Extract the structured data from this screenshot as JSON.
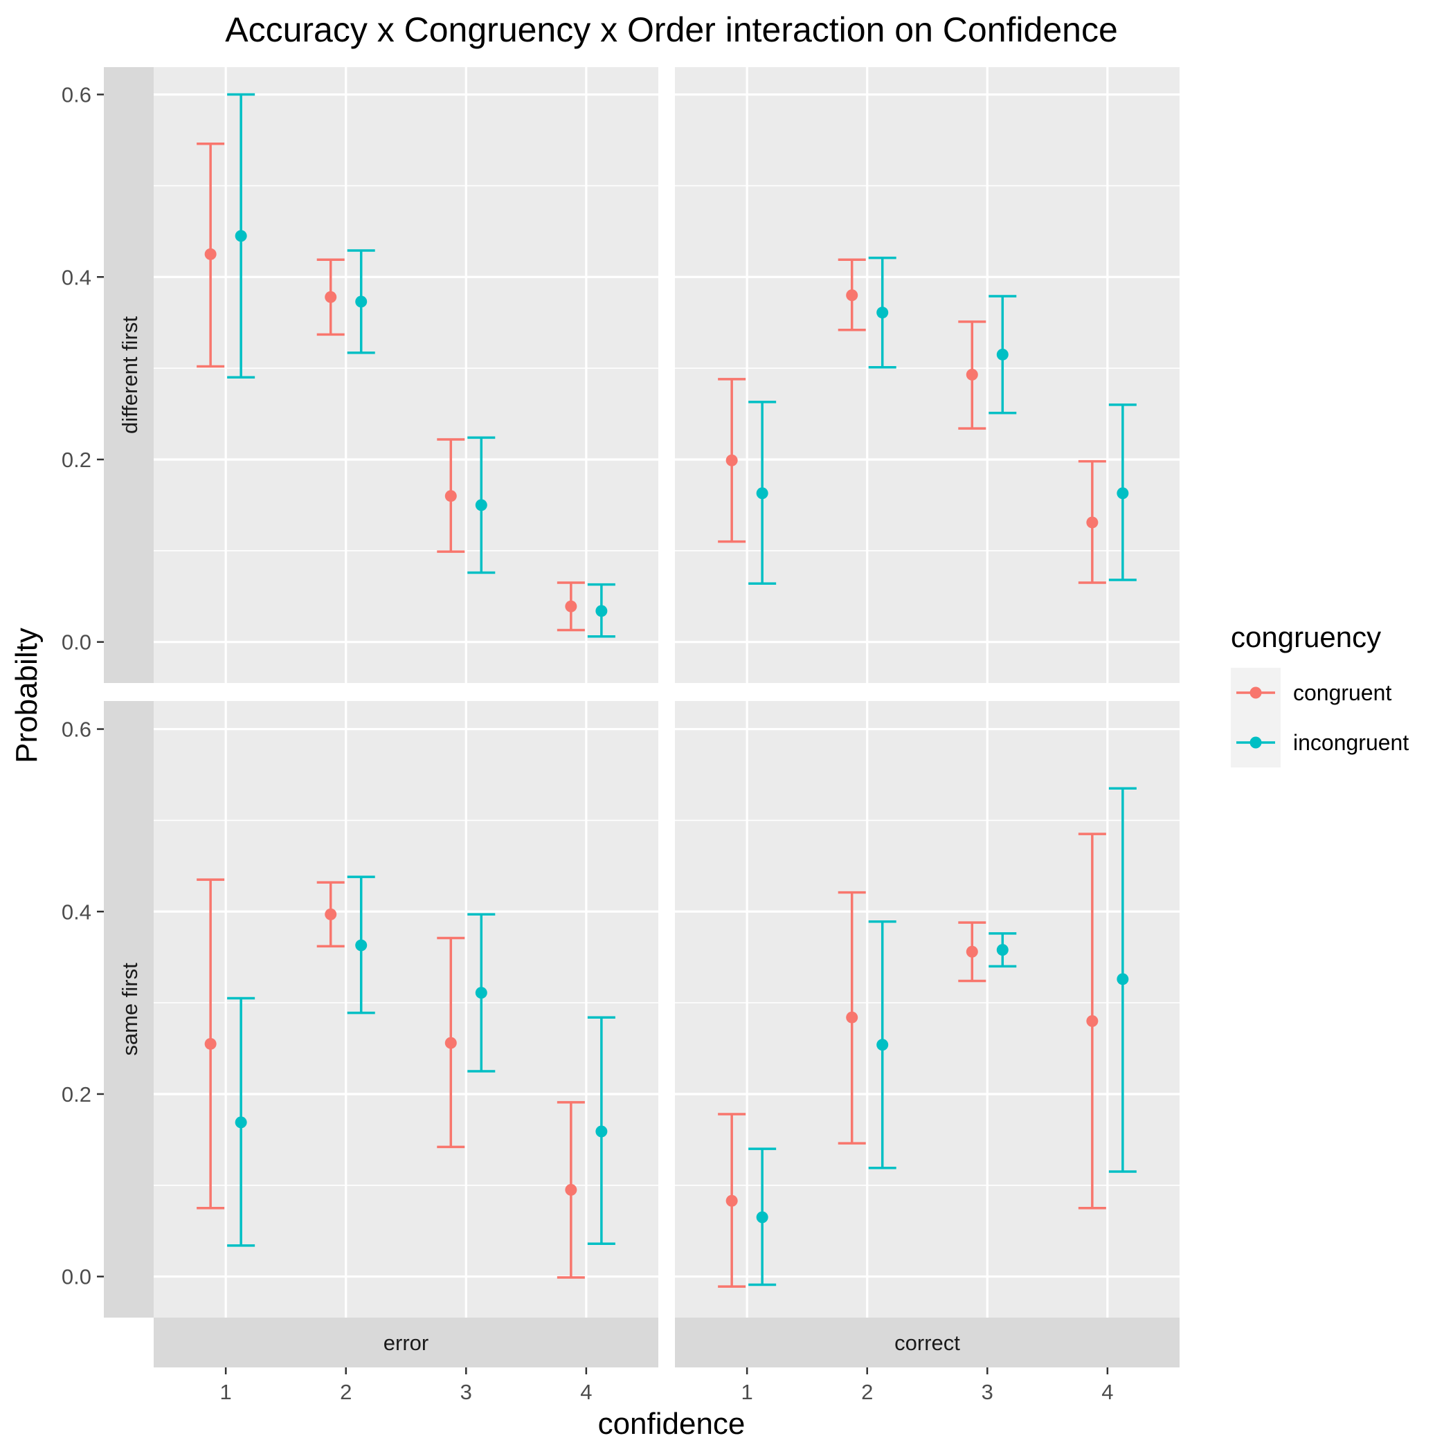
{
  "chart_data": {
    "type": "scatter",
    "subtype": "point-with-errorbars",
    "title": "Accuracy x Congruency x Order interaction on Confidence",
    "xlabel": "confidence",
    "ylabel": "Probabilty",
    "x_categories": [
      "1",
      "2",
      "3",
      "4"
    ],
    "y_ticks": [
      "0.0",
      "0.2",
      "0.4",
      "0.6"
    ],
    "ylim": [
      -0.045,
      0.63
    ],
    "grid": true,
    "facet_columns": [
      "error",
      "correct"
    ],
    "facet_rows": [
      "different first",
      "same first"
    ],
    "legend": {
      "title": "congruency",
      "position": "right",
      "entries": [
        {
          "name": "congruent",
          "color": "#F8766D"
        },
        {
          "name": "incongruent",
          "color": "#00BFC4"
        }
      ]
    },
    "panels": [
      {
        "row": "different first",
        "column": "error",
        "series": [
          {
            "name": "congruent",
            "color": "#F8766D",
            "points": [
              {
                "x": "1",
                "y": 0.425,
                "lo": 0.302,
                "hi": 0.546
              },
              {
                "x": "2",
                "y": 0.378,
                "lo": 0.337,
                "hi": 0.419
              },
              {
                "x": "3",
                "y": 0.16,
                "lo": 0.099,
                "hi": 0.222
              },
              {
                "x": "4",
                "y": 0.039,
                "lo": 0.013,
                "hi": 0.065
              }
            ]
          },
          {
            "name": "incongruent",
            "color": "#00BFC4",
            "points": [
              {
                "x": "1",
                "y": 0.445,
                "lo": 0.29,
                "hi": 0.6
              },
              {
                "x": "2",
                "y": 0.373,
                "lo": 0.317,
                "hi": 0.429
              },
              {
                "x": "3",
                "y": 0.15,
                "lo": 0.076,
                "hi": 0.224
              },
              {
                "x": "4",
                "y": 0.034,
                "lo": 0.006,
                "hi": 0.063
              }
            ]
          }
        ]
      },
      {
        "row": "different first",
        "column": "correct",
        "series": [
          {
            "name": "congruent",
            "color": "#F8766D",
            "points": [
              {
                "x": "1",
                "y": 0.199,
                "lo": 0.11,
                "hi": 0.288
              },
              {
                "x": "2",
                "y": 0.38,
                "lo": 0.342,
                "hi": 0.419
              },
              {
                "x": "3",
                "y": 0.293,
                "lo": 0.234,
                "hi": 0.351
              },
              {
                "x": "4",
                "y": 0.131,
                "lo": 0.065,
                "hi": 0.198
              }
            ]
          },
          {
            "name": "incongruent",
            "color": "#00BFC4",
            "points": [
              {
                "x": "1",
                "y": 0.163,
                "lo": 0.064,
                "hi": 0.263
              },
              {
                "x": "2",
                "y": 0.361,
                "lo": 0.301,
                "hi": 0.421
              },
              {
                "x": "3",
                "y": 0.315,
                "lo": 0.251,
                "hi": 0.379
              },
              {
                "x": "4",
                "y": 0.163,
                "lo": 0.068,
                "hi": 0.26
              }
            ]
          }
        ]
      },
      {
        "row": "same first",
        "column": "error",
        "series": [
          {
            "name": "congruent",
            "color": "#F8766D",
            "points": [
              {
                "x": "1",
                "y": 0.255,
                "lo": 0.075,
                "hi": 0.435
              },
              {
                "x": "2",
                "y": 0.397,
                "lo": 0.362,
                "hi": 0.432
              },
              {
                "x": "3",
                "y": 0.256,
                "lo": 0.142,
                "hi": 0.371
              },
              {
                "x": "4",
                "y": 0.095,
                "lo": -0.001,
                "hi": 0.191
              }
            ]
          },
          {
            "name": "incongruent",
            "color": "#00BFC4",
            "points": [
              {
                "x": "1",
                "y": 0.169,
                "lo": 0.034,
                "hi": 0.305
              },
              {
                "x": "2",
                "y": 0.363,
                "lo": 0.289,
                "hi": 0.438
              },
              {
                "x": "3",
                "y": 0.311,
                "lo": 0.225,
                "hi": 0.397
              },
              {
                "x": "4",
                "y": 0.159,
                "lo": 0.036,
                "hi": 0.284
              }
            ]
          }
        ]
      },
      {
        "row": "same first",
        "column": "correct",
        "series": [
          {
            "name": "congruent",
            "color": "#F8766D",
            "points": [
              {
                "x": "1",
                "y": 0.083,
                "lo": -0.011,
                "hi": 0.178
              },
              {
                "x": "2",
                "y": 0.284,
                "lo": 0.146,
                "hi": 0.421
              },
              {
                "x": "3",
                "y": 0.356,
                "lo": 0.324,
                "hi": 0.388
              },
              {
                "x": "4",
                "y": 0.28,
                "lo": 0.075,
                "hi": 0.485
              }
            ]
          },
          {
            "name": "incongruent",
            "color": "#00BFC4",
            "points": [
              {
                "x": "1",
                "y": 0.065,
                "lo": -0.009,
                "hi": 0.14
              },
              {
                "x": "2",
                "y": 0.254,
                "lo": 0.119,
                "hi": 0.389
              },
              {
                "x": "3",
                "y": 0.358,
                "lo": 0.34,
                "hi": 0.376
              },
              {
                "x": "4",
                "y": 0.326,
                "lo": 0.115,
                "hi": 0.535
              }
            ]
          }
        ]
      }
    ]
  }
}
